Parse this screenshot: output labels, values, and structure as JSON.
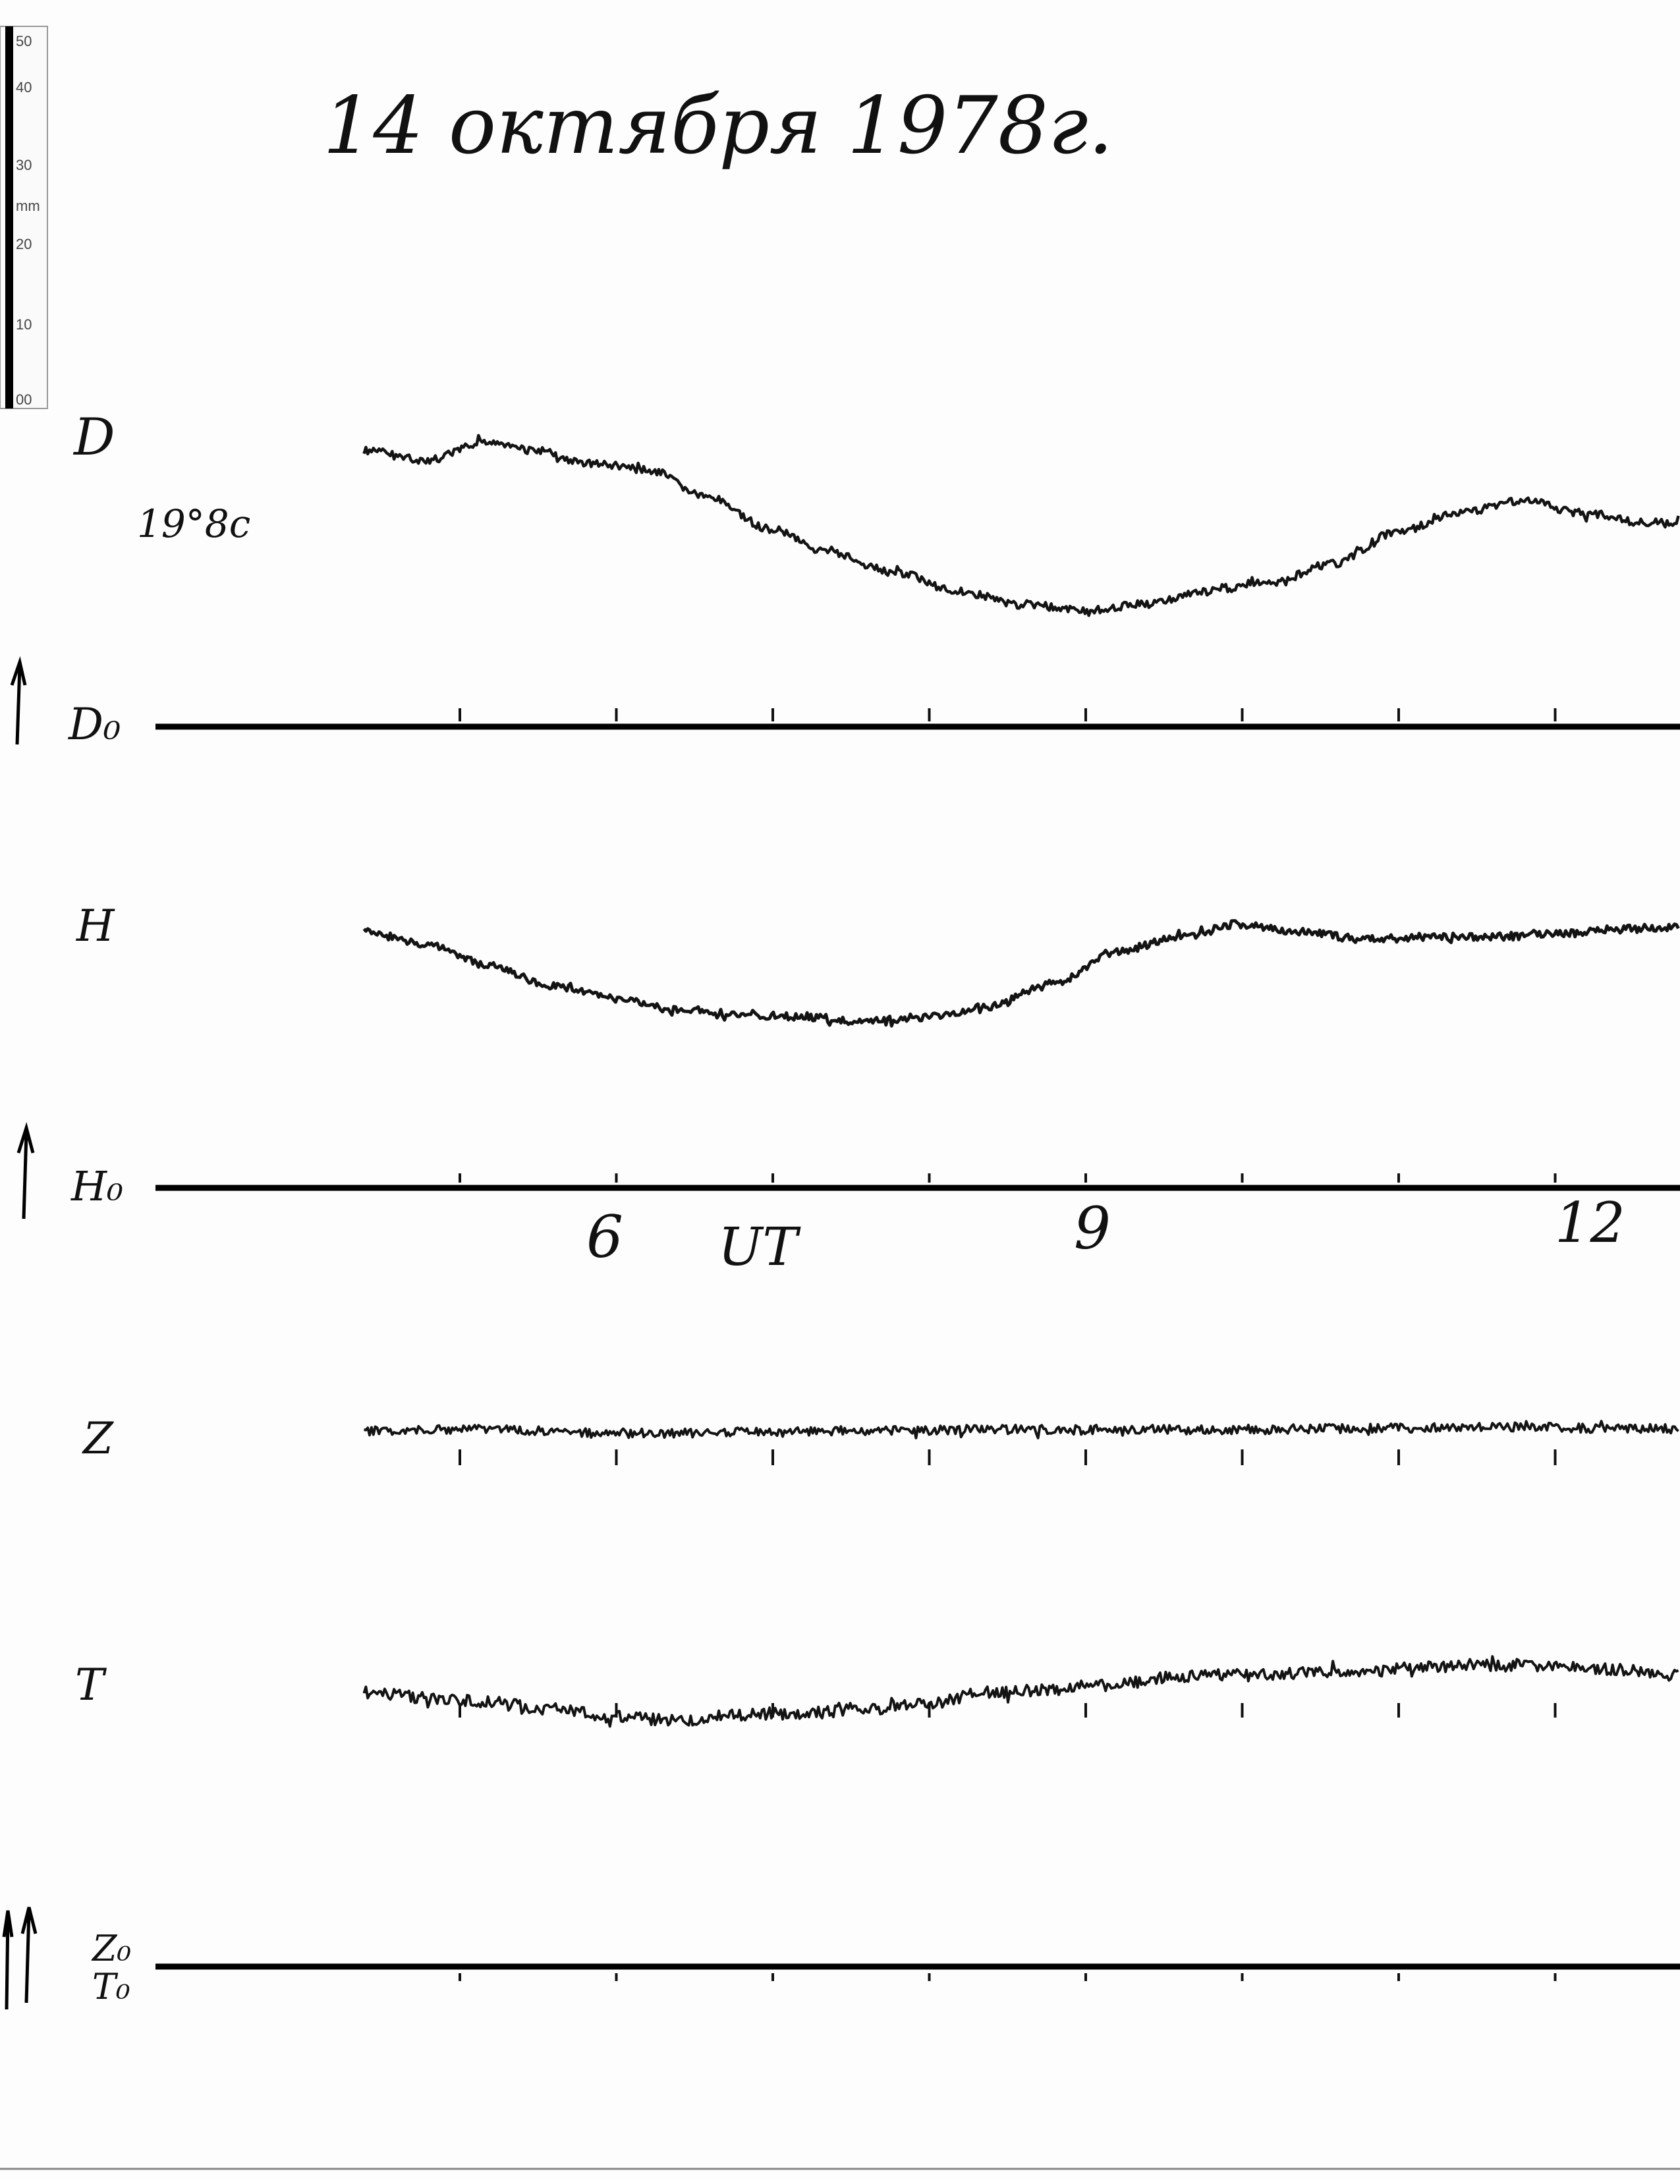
{
  "title": "14 октября 1978г.",
  "ruler": {
    "ticks": [
      "50",
      "40",
      "30",
      "20",
      "10",
      "00"
    ],
    "unit": "mm"
  },
  "scale_note": "19°8c",
  "time_axis": {
    "labels": [
      "6",
      "9",
      "12"
    ],
    "unit_label": "UT"
  },
  "chart_data": {
    "type": "line",
    "x_unit": "UT hours",
    "x_ticks": [
      "6",
      "9",
      "12"
    ],
    "baselines": [
      {
        "name": "D₀"
      },
      {
        "name": "H₀"
      },
      {
        "name": "Z₀"
      },
      {
        "name": "T₀"
      }
    ],
    "series": [
      {
        "name": "D",
        "x": [
          3.4,
          3.8,
          4.2,
          4.5,
          4.8,
          5.2,
          5.6,
          6.0,
          6.4,
          6.8,
          7.2,
          7.6,
          8.0,
          8.4,
          8.8,
          9.2,
          9.6,
          10.0,
          10.4,
          10.8,
          11.2,
          11.6,
          12.0,
          12.4
        ],
        "y": [
          0.8,
          0.65,
          0.95,
          0.8,
          0.6,
          0.5,
          0.05,
          -0.45,
          -0.85,
          -1.15,
          -1.45,
          -1.65,
          -1.75,
          -1.65,
          -1.45,
          -1.3,
          -1.0,
          -0.5,
          -0.2,
          0.0,
          -0.2,
          -0.35,
          -0.4,
          -0.35
        ]
      },
      {
        "name": "H",
        "x": [
          3.4,
          3.8,
          4.2,
          4.6,
          5.0,
          5.4,
          5.8,
          6.2,
          6.6,
          7.0,
          7.4,
          7.8,
          8.2,
          8.6,
          9.0,
          9.4,
          9.8,
          10.2,
          10.6,
          11.0,
          11.4,
          11.8,
          12.2,
          12.4
        ],
        "y": [
          0.2,
          -0.05,
          -0.45,
          -0.85,
          -1.1,
          -1.3,
          -1.4,
          -1.45,
          -1.55,
          -1.45,
          -1.25,
          -0.8,
          -0.2,
          0.1,
          0.35,
          0.2,
          0.05,
          0.1,
          0.1,
          0.15,
          0.25,
          0.3,
          0.45,
          0.35
        ]
      },
      {
        "name": "Z",
        "x": [
          3.4,
          4.2,
          5.0,
          5.8,
          6.6,
          7.4,
          8.2,
          9.0,
          9.8,
          10.6,
          11.4,
          12.2,
          12.4
        ],
        "y": [
          0.0,
          0.05,
          -0.1,
          -0.05,
          0.0,
          0.05,
          0.05,
          0.05,
          0.1,
          0.15,
          0.1,
          0.05,
          0.05
        ]
      },
      {
        "name": "T",
        "x": [
          3.4,
          3.8,
          4.2,
          4.6,
          5.0,
          5.4,
          5.8,
          6.2,
          6.6,
          7.0,
          7.4,
          7.8,
          8.2,
          8.6,
          9.0,
          9.4,
          9.8,
          10.2,
          10.6,
          11.0,
          11.4,
          11.8,
          12.2,
          12.4
        ],
        "y": [
          0.2,
          0.05,
          -0.05,
          -0.25,
          -0.45,
          -0.55,
          -0.4,
          -0.35,
          -0.25,
          -0.1,
          0.2,
          0.25,
          0.45,
          0.6,
          0.65,
          0.7,
          0.75,
          0.85,
          0.9,
          0.85,
          0.8,
          0.65,
          0.65,
          0.55
        ]
      }
    ],
    "grid": false
  }
}
